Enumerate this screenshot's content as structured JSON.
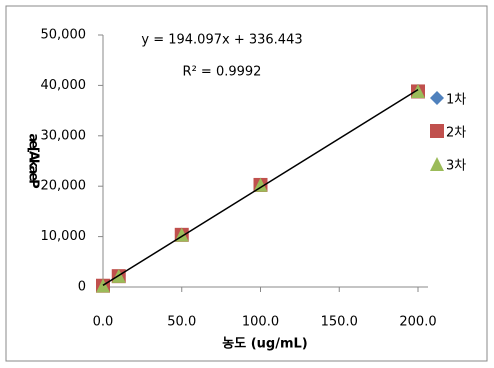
{
  "chart_data": {
    "type": "scatter",
    "x_label": "농도 (ug/mL)",
    "y_label": "ae[AkaeP",
    "series": [
      {
        "name": "1차",
        "color": "#4f81bd",
        "marker": "diamond",
        "x": [
          0,
          10,
          50,
          100,
          200
        ],
        "values": [
          300,
          2200,
          10400,
          20300,
          38900
        ]
      },
      {
        "name": "2차",
        "color": "#c0504d",
        "marker": "square",
        "x": [
          0,
          10,
          50,
          100,
          200
        ],
        "values": [
          250,
          2150,
          10350,
          20250,
          38800
        ]
      },
      {
        "name": "3차",
        "color": "#9bbb59",
        "marker": "triangle",
        "x": [
          0,
          10,
          50,
          100,
          200
        ],
        "values": [
          300,
          2200,
          10400,
          20300,
          38900
        ]
      }
    ],
    "trendline": {
      "slope": 194.097,
      "intercept": 336.443,
      "x": [
        0,
        200
      ],
      "equation": "y = 194.097x + 336.443",
      "r2_label": "R² = 0.9992"
    },
    "xlim": [
      0,
      200
    ],
    "ylim": [
      0,
      50000
    ],
    "xticks": [
      {
        "value": 0,
        "label": "0.0"
      },
      {
        "value": 50,
        "label": "50.0"
      },
      {
        "value": 100,
        "label": "100.0"
      },
      {
        "value": 150,
        "label": "150.0"
      },
      {
        "value": 200,
        "label": "200.0"
      }
    ],
    "yticks": [
      0,
      {
        "value": 10000,
        "label": "10,000"
      },
      {
        "value": 20000,
        "label": "20,000"
      },
      {
        "value": 30000,
        "label": "30,000"
      },
      {
        "value": 40000,
        "label": "40,000"
      },
      {
        "value": 50000,
        "label": "50,000"
      }
    ],
    "legend": "right"
  }
}
